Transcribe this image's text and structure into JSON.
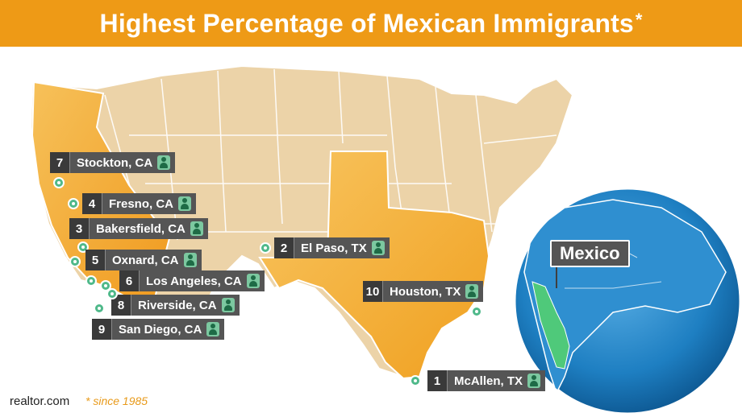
{
  "header": {
    "title": "Highest Percentage of Mexican Immigrants",
    "asterisk": "*"
  },
  "colors": {
    "banner": "#ee9a16",
    "highlight_state": "#f4ad3a",
    "map_base": "#ecd3a8",
    "label_bg": "#555555",
    "pin": "#4fb98a",
    "ocean": "#1e7fc2"
  },
  "cities": [
    {
      "rank": "7",
      "name": "Stockton, CA",
      "icon": "person-icon"
    },
    {
      "rank": "4",
      "name": "Fresno, CA",
      "icon": "person-icon"
    },
    {
      "rank": "3",
      "name": "Bakersfield, CA",
      "icon": "person-icon"
    },
    {
      "rank": "5",
      "name": "Oxnard, CA",
      "icon": "person-icon"
    },
    {
      "rank": "6",
      "name": "Los Angeles, CA",
      "icon": "person-icon"
    },
    {
      "rank": "8",
      "name": "Riverside, CA",
      "icon": "person-icon"
    },
    {
      "rank": "9",
      "name": "San Diego, CA",
      "icon": "person-icon"
    },
    {
      "rank": "2",
      "name": "El Paso, TX",
      "icon": "person-icon"
    },
    {
      "rank": "10",
      "name": "Houston, TX",
      "icon": "person-icon"
    },
    {
      "rank": "1",
      "name": "McAllen, TX",
      "icon": "person-icon"
    }
  ],
  "globe": {
    "label": "Mexico"
  },
  "footer": {
    "source": "realtor.com",
    "note": "* since 1985"
  }
}
